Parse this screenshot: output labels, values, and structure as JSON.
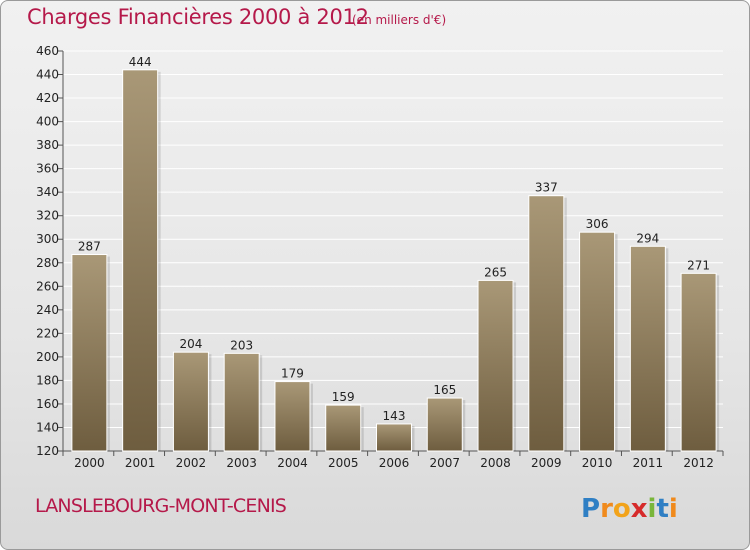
{
  "title": "Charges Financières 2000 à 2012",
  "unit_note": "(en milliers d'€)",
  "town": "LANSLEBOURG-MONT-CENIS",
  "logo_text": "Proxiti",
  "colors": {
    "title": "#b5194a",
    "bar_light": "#a89676",
    "bar_dark": "#6f5e40"
  },
  "chart_data": {
    "type": "bar",
    "categories": [
      "2000",
      "2001",
      "2002",
      "2003",
      "2004",
      "2005",
      "2006",
      "2007",
      "2008",
      "2009",
      "2010",
      "2011",
      "2012"
    ],
    "values": [
      287,
      444,
      204,
      203,
      179,
      159,
      143,
      165,
      265,
      337,
      306,
      294,
      271
    ],
    "ylim": [
      120,
      460
    ],
    "yticks": [
      120,
      140,
      160,
      180,
      200,
      220,
      240,
      260,
      280,
      300,
      320,
      340,
      360,
      380,
      400,
      420,
      440,
      460
    ],
    "grid": true,
    "xlabel": "",
    "ylabel": ""
  }
}
